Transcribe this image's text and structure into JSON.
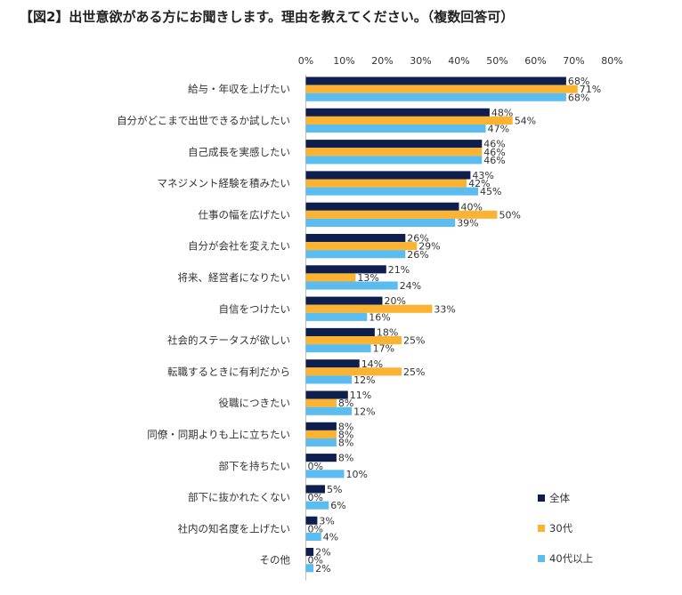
{
  "chart_data": {
    "type": "bar",
    "orientation": "horizontal",
    "title": "【図2】出世意欲がある方にお聞きします。理由を教えてください。（複数回答可）",
    "xlim": [
      0,
      80
    ],
    "x_ticks": [
      "0%",
      "10%",
      "20%",
      "30%",
      "40%",
      "50%",
      "60%",
      "70%",
      "80%"
    ],
    "grid": false,
    "legend_position": "bottom-right",
    "categories": [
      "給与・年収を上げたい",
      "自分がどこまで出世できるか試したい",
      "自己成長を実感したい",
      "マネジメント経験を積みたい",
      "仕事の幅を広げたい",
      "自分が会社を変えたい",
      "将来、経営者になりたい",
      "自信をつけたい",
      "社会的ステータスが欲しい",
      "転職するときに有利だから",
      "役職につきたい",
      "同僚・同期よりも上に立ちたい",
      "部下を持ちたい",
      "部下に抜かれたくない",
      "社内の知名度を上げたい",
      "その他"
    ],
    "series": [
      {
        "name": "全体",
        "color": "#0f1f4d",
        "values": [
          68,
          48,
          46,
          43,
          40,
          26,
          21,
          20,
          18,
          14,
          11,
          8,
          8,
          5,
          3,
          2
        ]
      },
      {
        "name": "30代",
        "color": "#fbb331",
        "values": [
          71,
          54,
          46,
          42,
          50,
          29,
          13,
          33,
          25,
          25,
          8,
          8,
          0,
          0,
          0,
          0
        ]
      },
      {
        "name": "40代以上",
        "color": "#5bbcef",
        "values": [
          68,
          47,
          46,
          45,
          39,
          26,
          24,
          16,
          17,
          12,
          12,
          8,
          10,
          6,
          4,
          2
        ]
      }
    ],
    "value_suffix": "%"
  }
}
